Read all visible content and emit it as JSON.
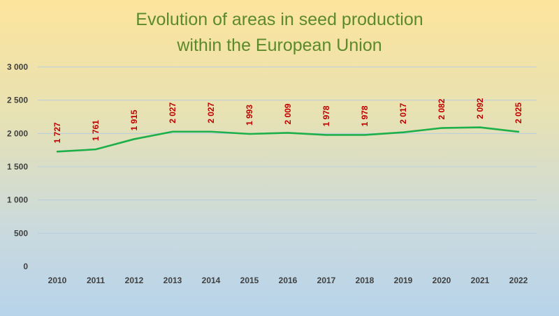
{
  "chart_data": {
    "type": "line",
    "title": "Evolution of areas in seed production",
    "subtitle": "within the European Union",
    "categories": [
      "2010",
      "2011",
      "2012",
      "2013",
      "2014",
      "2015",
      "2016",
      "2017",
      "2018",
      "2019",
      "2020",
      "2021",
      "2022"
    ],
    "series": [
      {
        "values": [
          1727,
          1761,
          1915,
          2027,
          2027,
          1993,
          2009,
          1978,
          1978,
          2017,
          2082,
          2092,
          2025
        ],
        "data_labels": [
          "1 727",
          "1 761",
          "1 915",
          "2 027",
          "2 027",
          "1 993",
          "2 009",
          "1 978",
          "1 978",
          "2 017",
          "2 082",
          "2 092",
          "2 025"
        ],
        "color": "#1db04a"
      }
    ],
    "ylim": [
      0,
      3000
    ],
    "y_ticks": [
      0,
      500,
      1000,
      1500,
      2000,
      2500,
      3000
    ],
    "y_tick_labels": [
      "0",
      "500",
      "1 000",
      "1 500",
      "2 000",
      "2 500",
      "3 000"
    ],
    "xlabel": "",
    "ylabel": "",
    "grid": true,
    "legend": "none"
  },
  "colors": {
    "title": "#5b8a2b",
    "data_label": "#c00000",
    "gridline": "#b9cde0",
    "line": "#1db04a"
  }
}
